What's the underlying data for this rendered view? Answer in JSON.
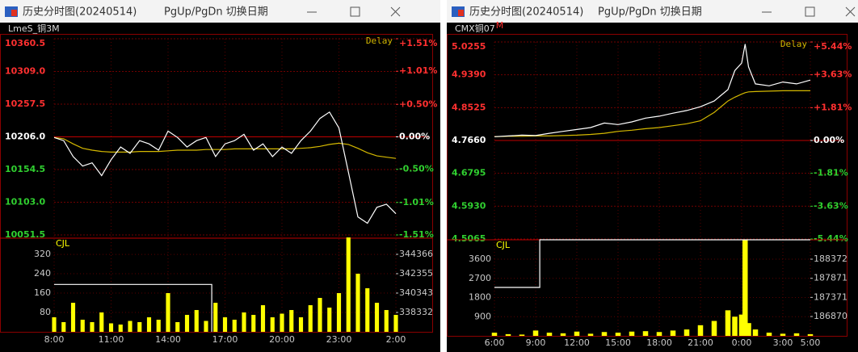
{
  "windows": [
    {
      "title": "历史分时图(20240514)",
      "hint": "PgUp/PgDn 切换日期",
      "symbol": "LmeS_铜3M",
      "delay": "Delay",
      "x": [
        0,
        0.5,
        1,
        1.5,
        2,
        2.5,
        3,
        3.5,
        4,
        4.5,
        5,
        5.5,
        6,
        6.5,
        7,
        7.5,
        8,
        8.5,
        9,
        9.5,
        10,
        10.5,
        11,
        11.5,
        12,
        12.5,
        13,
        13.5,
        14,
        14.5,
        15,
        15.5,
        16,
        16.5,
        17,
        17.5,
        18
      ],
      "xlim": [
        0,
        18
      ],
      "xticks": [
        {
          "value": 0,
          "label": "8:00"
        },
        {
          "value": 3,
          "label": "11:00"
        },
        {
          "value": 6,
          "label": "14:00"
        },
        {
          "value": 9,
          "label": "17:00"
        },
        {
          "value": 12,
          "label": "20:00"
        },
        {
          "value": 15,
          "label": "23:00"
        },
        {
          "value": 18,
          "label": "2:00"
        }
      ],
      "price": {
        "type": "line",
        "ylim": [
          10051.5,
          10360.5
        ],
        "yticks": [
          10360.5,
          {
            "value": 10309,
            "label": "10309.0"
          },
          10257.5,
          {
            "value": 10206,
            "label": "10206.0"
          },
          10154.5,
          {
            "value": 10103,
            "label": "10103.0"
          },
          10051.5
        ],
        "y2lim": [
          -1.51,
          1.51
        ],
        "y2ticks": [
          {
            "value": 1.51,
            "label": "+1.51%"
          },
          {
            "value": 1.01,
            "label": "+1.01%"
          },
          {
            "value": 0.5,
            "label": "+0.50%"
          },
          {
            "value": 0,
            "label": "0.00%"
          },
          {
            "value": -0.5,
            "label": "-0.50%"
          },
          {
            "value": -1.01,
            "label": "-1.01%"
          },
          {
            "value": -1.51,
            "label": "-1.51%"
          }
        ],
        "series": [
          {
            "color": "#ffffff",
            "values": [
              10205,
              10200,
              10175,
              10160,
              10165,
              10145,
              10170,
              10190,
              10180,
              10200,
              10195,
              10185,
              10215,
              10205,
              10190,
              10200,
              10205,
              10175,
              10195,
              10200,
              10210,
              10185,
              10195,
              10175,
              10190,
              10180,
              10200,
              10215,
              10235,
              10245,
              10220,
              10150,
              10080,
              10070,
              10095,
              10100,
              10085
            ]
          },
          {
            "color": "#d4b800",
            "values": [
              10205,
              10203,
              10195,
              10188,
              10185,
              10183,
              10182,
              10182,
              10182,
              10183,
              10183,
              10183,
              10184,
              10185,
              10185,
              10185,
              10186,
              10186,
              10186,
              10187,
              10187,
              10187,
              10187,
              10187,
              10187,
              10187,
              10188,
              10189,
              10191,
              10194,
              10196,
              10194,
              10188,
              10181,
              10176,
              10174,
              10172
            ]
          }
        ]
      },
      "volume": {
        "type": "bar",
        "label": "CJL",
        "ylim": [
          0,
          387
        ],
        "yticks": [
          320,
          240,
          160,
          80
        ],
        "y2lim": [
          336321,
          346042
        ],
        "y2ticks": [
          344366,
          342355,
          340343,
          338332
        ],
        "bars": {
          "color": "#ffff00",
          "values": [
            60,
            40,
            120,
            50,
            40,
            80,
            35,
            30,
            45,
            40,
            60,
            50,
            160,
            40,
            70,
            90,
            45,
            120,
            60,
            50,
            80,
            70,
            110,
            60,
            75,
            90,
            60,
            110,
            140,
            100,
            160,
            390,
            240,
            180,
            120,
            90,
            70
          ]
        },
        "interest": {
          "color": "#ffffff",
          "x": [
            0,
            8.3,
            8.3
          ],
          "values": [
            341240,
            341240,
            336321
          ]
        }
      }
    },
    {
      "title": "历史分时图(20240514)",
      "hint": "PgUp/PgDn 切换日期",
      "symbol": "CMX铜07",
      "symbol_mark": "M",
      "delay": "Delay",
      "x": [
        0,
        1,
        2,
        3,
        4,
        5,
        6,
        7,
        8,
        9,
        10,
        11,
        12,
        13,
        14,
        15,
        16,
        17,
        17.5,
        18,
        18.25,
        18.5,
        19,
        20,
        21,
        22,
        23
      ],
      "xlim": [
        0,
        23
      ],
      "xticks": [
        {
          "value": 0,
          "label": "6:00"
        },
        {
          "value": 3,
          "label": "9:00"
        },
        {
          "value": 6,
          "label": "12:00"
        },
        {
          "value": 9,
          "label": "15:00"
        },
        {
          "value": 12,
          "label": "18:00"
        },
        {
          "value": 15,
          "label": "21:00"
        },
        {
          "value": 18,
          "label": "0:00"
        },
        {
          "value": 21,
          "label": "3:00"
        },
        {
          "value": 23,
          "label": "5:00"
        }
      ],
      "price": {
        "type": "line",
        "ylim": [
          4.5065,
          5.0255
        ],
        "yticks": [
          5.0255,
          {
            "value": 4.939,
            "label": "4.9390"
          },
          4.8525,
          {
            "value": 4.766,
            "label": "4.7660"
          },
          4.6795,
          {
            "value": 4.593,
            "label": "4.5930"
          },
          4.5065
        ],
        "y2lim": [
          -5.44,
          5.44
        ],
        "y2ticks": [
          {
            "value": 5.44,
            "label": "+5.44%"
          },
          {
            "value": 3.63,
            "label": "+3.63%"
          },
          {
            "value": 1.81,
            "label": "+1.81%"
          },
          {
            "value": 0,
            "label": "0.00%"
          },
          {
            "value": -1.81,
            "label": "-1.81%"
          },
          {
            "value": -3.63,
            "label": "-3.63%"
          },
          {
            "value": -5.44,
            "label": "-5.44%"
          }
        ],
        "series": [
          {
            "color": "#ffffff",
            "values": [
              4.776,
              4.778,
              4.78,
              4.779,
              4.785,
              4.79,
              4.795,
              4.8,
              4.812,
              4.808,
              4.815,
              4.825,
              4.83,
              4.838,
              4.845,
              4.855,
              4.87,
              4.9,
              4.95,
              4.97,
              5.02,
              4.96,
              4.915,
              4.91,
              4.92,
              4.915,
              4.925
            ]
          },
          {
            "color": "#d4b800",
            "values": [
              4.776,
              4.777,
              4.777,
              4.778,
              4.778,
              4.779,
              4.78,
              4.782,
              4.785,
              4.79,
              4.793,
              4.797,
              4.8,
              4.805,
              4.81,
              4.818,
              4.84,
              4.87,
              4.88,
              4.888,
              4.892,
              4.894,
              4.895,
              4.896,
              4.897,
              4.897,
              4.897
            ]
          }
        ]
      },
      "volume": {
        "type": "bar",
        "label": "CJL",
        "ylim": [
          0,
          4512
        ],
        "yticks": [
          3600,
          2700,
          1800,
          900
        ],
        "y2lim": [
          186363,
          188880
        ],
        "y2ticks": [
          188372,
          187871,
          187371,
          186870
        ],
        "bars": {
          "color": "#ffff00",
          "values": [
            150,
            80,
            60,
            250,
            150,
            120,
            200,
            100,
            180,
            150,
            200,
            220,
            180,
            250,
            300,
            500,
            700,
            1200,
            900,
            1000,
            4500,
            600,
            300,
            150,
            100,
            120,
            80
          ]
        },
        "interest": {
          "color": "#ffffff",
          "x": [
            0,
            3.3,
            3.3,
            23
          ],
          "values": [
            187632,
            187632,
            188880,
            188880
          ]
        }
      }
    }
  ]
}
